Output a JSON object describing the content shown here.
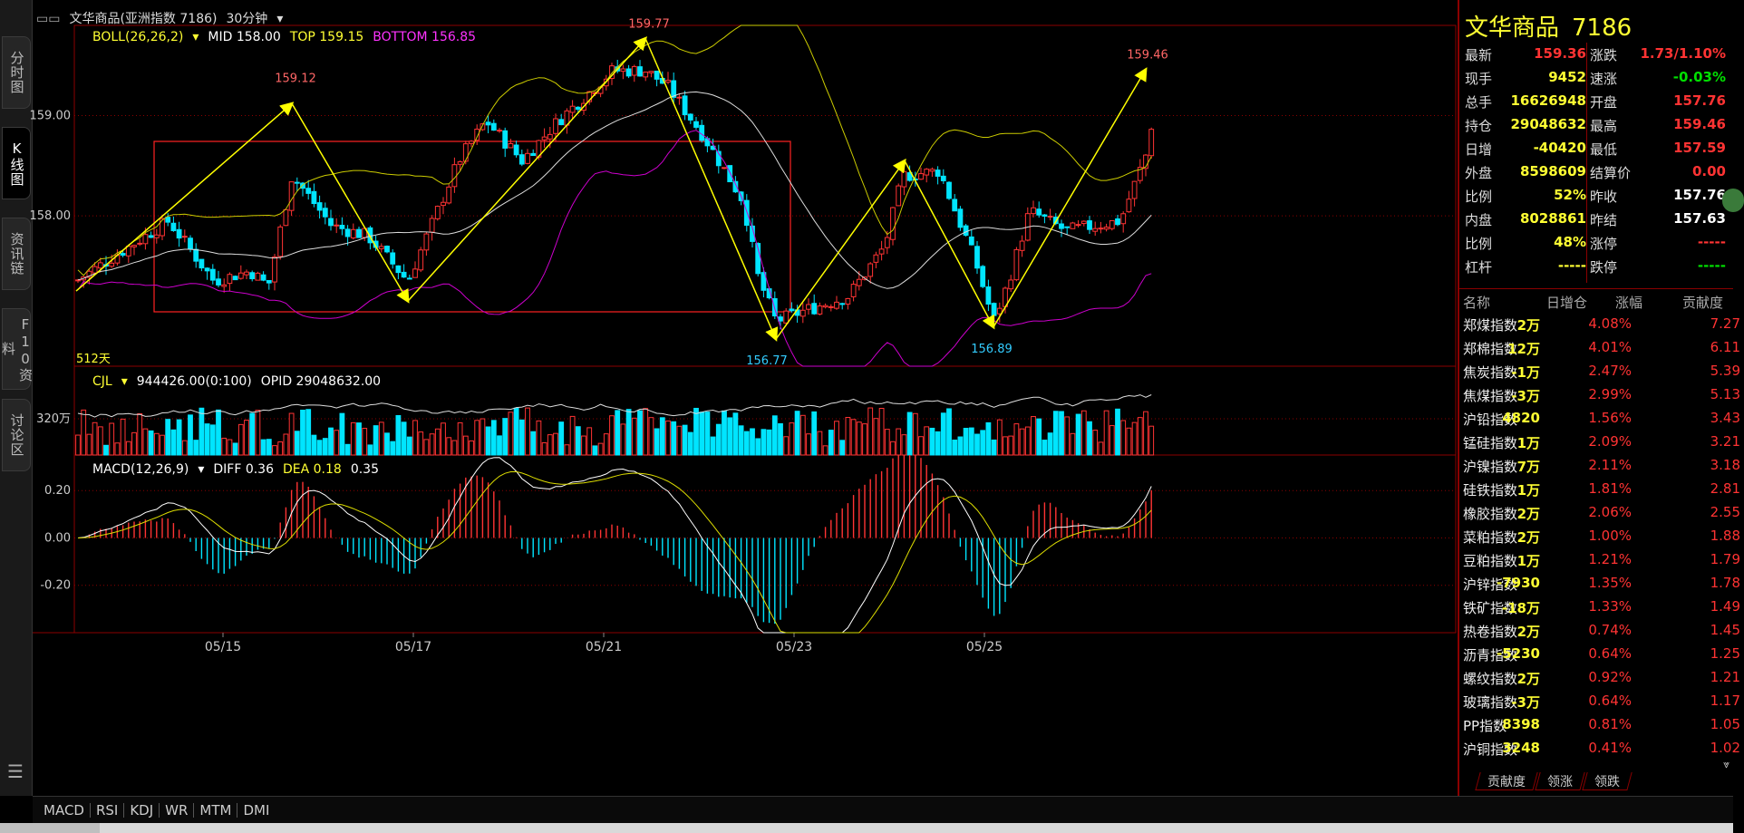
{
  "header": {
    "title": "文华商品(亚洲指数 7186)",
    "period": "30分钟"
  },
  "side_tabs": [
    {
      "label": "分时图"
    },
    {
      "label": "K线图"
    },
    {
      "label": "资讯链"
    },
    {
      "label": "F10资料"
    },
    {
      "label": "讨论区"
    }
  ],
  "indicators": {
    "boll": {
      "name": "BOLL(26,26,2)",
      "mid": "MID 158.00",
      "top": "TOP 159.15",
      "bottom": "BOTTOM 156.85"
    },
    "cjl": {
      "name": "CJL",
      "vol": "944426.00(0:100)",
      "opid": "OPID 29048632.00"
    },
    "macd": {
      "name": "MACD(12,26,9)",
      "diff": "DIFF 0.36",
      "dea": "DEA 0.18",
      "macd": "0.35"
    }
  },
  "axis": {
    "price_ticks": [
      "159.00",
      "158.00"
    ],
    "vol_ticks": [
      "320万"
    ],
    "macd_ticks": [
      "0.20",
      "0.00",
      "-0.20"
    ],
    "date_ticks": [
      "05/15",
      "05/17",
      "05/21",
      "05/23",
      "05/25"
    ]
  },
  "annotations": {
    "p1": "159.12",
    "p2": "159.77",
    "p3": "156.77",
    "p4": "156.89",
    "p5": "159.46",
    "left_label": "512天"
  },
  "chart_data": {
    "type": "candlestick",
    "title": "文华商品(亚洲指数 7186)",
    "ylim": [
      156.5,
      159.9
    ],
    "x": [
      "05/15",
      "05/17",
      "05/21",
      "05/23",
      "05/25"
    ],
    "swing_points": [
      {
        "label": "159.12",
        "value": 159.12
      },
      {
        "label": "159.77",
        "value": 159.77
      },
      {
        "label": "156.77",
        "value": 156.77
      },
      {
        "label": "156.89",
        "value": 156.89
      },
      {
        "label": "159.46",
        "value": 159.46
      }
    ],
    "boll": {
      "mid": 158.0,
      "top": 159.15,
      "bottom": 156.85
    },
    "macd": {
      "diff": 0.36,
      "dea": 0.18,
      "macd": 0.35,
      "ylim": [
        -0.4,
        0.35
      ]
    }
  },
  "quote": {
    "name": "文华商品",
    "code": "7186",
    "rows": [
      {
        "l1": "最新",
        "v1": "159.36",
        "c1": "red",
        "l2": "涨跌",
        "v2": "1.73/1.10%",
        "c2": "red"
      },
      {
        "l1": "现手",
        "v1": "9452",
        "c1": "yellow",
        "l2": "速涨",
        "v2": "-0.03%",
        "c2": "green"
      },
      {
        "l1": "总手",
        "v1": "16626948",
        "c1": "yellow",
        "l2": "开盘",
        "v2": "157.76",
        "c2": "red"
      },
      {
        "l1": "持仓",
        "v1": "29048632",
        "c1": "yellow",
        "l2": "最高",
        "v2": "159.46",
        "c2": "red"
      },
      {
        "l1": "日增",
        "v1": "-40420",
        "c1": "yellow",
        "l2": "最低",
        "v2": "157.59",
        "c2": "red"
      },
      {
        "l1": "外盘",
        "v1": "8598609",
        "c1": "yellow",
        "l2": "结算价",
        "v2": "0.00",
        "c2": "red"
      },
      {
        "l1": "比例",
        "v1": "52%",
        "c1": "yellow",
        "l2": "昨收",
        "v2": "157.76",
        "c2": "white"
      },
      {
        "l1": "内盘",
        "v1": "8028861",
        "c1": "yellow",
        "l2": "昨结",
        "v2": "157.63",
        "c2": "white"
      },
      {
        "l1": "比例",
        "v1": "48%",
        "c1": "yellow",
        "l2": "涨停",
        "v2": "-----",
        "c2": "red"
      },
      {
        "l1": "杠杆",
        "v1": "-----",
        "c1": "yellow",
        "l2": "跌停",
        "v2": "-----",
        "c2": "green"
      }
    ]
  },
  "rank": {
    "headers": [
      "名称",
      "日增仓",
      "涨幅",
      "贡献度"
    ],
    "rows": [
      {
        "name": "郑煤指数",
        "oi": "2万",
        "chg": "4.08%",
        "contrib": "7.27"
      },
      {
        "name": "郑棉指数",
        "oi": "12万",
        "chg": "4.01%",
        "contrib": "6.11"
      },
      {
        "name": "焦炭指数",
        "oi": "-1万",
        "chg": "2.47%",
        "contrib": "5.39"
      },
      {
        "name": "焦煤指数",
        "oi": "-3万",
        "chg": "2.99%",
        "contrib": "5.13"
      },
      {
        "name": "沪铅指数",
        "oi": "4820",
        "chg": "1.56%",
        "contrib": "3.43"
      },
      {
        "name": "锰硅指数",
        "oi": "1万",
        "chg": "2.09%",
        "contrib": "3.21"
      },
      {
        "name": "沪镍指数",
        "oi": "7万",
        "chg": "2.11%",
        "contrib": "3.18"
      },
      {
        "name": "硅铁指数",
        "oi": "1万",
        "chg": "1.81%",
        "contrib": "2.81"
      },
      {
        "name": "橡胶指数",
        "oi": "2万",
        "chg": "2.06%",
        "contrib": "2.55"
      },
      {
        "name": "菜粕指数",
        "oi": "2万",
        "chg": "1.00%",
        "contrib": "1.88"
      },
      {
        "name": "豆粕指数",
        "oi": "1万",
        "chg": "1.21%",
        "contrib": "1.79"
      },
      {
        "name": "沪锌指数",
        "oi": "-7930",
        "chg": "1.35%",
        "contrib": "1.78"
      },
      {
        "name": "铁矿指数",
        "oi": "-18万",
        "chg": "1.33%",
        "contrib": "1.49"
      },
      {
        "name": "热卷指数",
        "oi": "2万",
        "chg": "0.74%",
        "contrib": "1.45"
      },
      {
        "name": "沥青指数",
        "oi": "-5230",
        "chg": "0.64%",
        "contrib": "1.25"
      },
      {
        "name": "螺纹指数",
        "oi": "2万",
        "chg": "0.92%",
        "contrib": "1.21"
      },
      {
        "name": "玻璃指数",
        "oi": "-3万",
        "chg": "0.64%",
        "contrib": "1.17"
      },
      {
        "name": "PP指数",
        "oi": "8398",
        "chg": "0.81%",
        "contrib": "1.05"
      },
      {
        "name": "沪铜指数",
        "oi": "3248",
        "chg": "0.41%",
        "contrib": "1.02"
      }
    ]
  },
  "panel_tabs": [
    "贡献度",
    "领涨",
    "领跌"
  ],
  "bottom_tabs": [
    "MACD",
    "RSI",
    "KDJ",
    "WR",
    "MTM",
    "DMI"
  ],
  "colors": {
    "up": "#ff3333",
    "down": "#00e5ff",
    "boll_top": "#cccc00",
    "boll_bottom": "#cc00cc",
    "mid": "#dddddd",
    "arrow": "#ffff00",
    "grid": "#8b0000"
  }
}
